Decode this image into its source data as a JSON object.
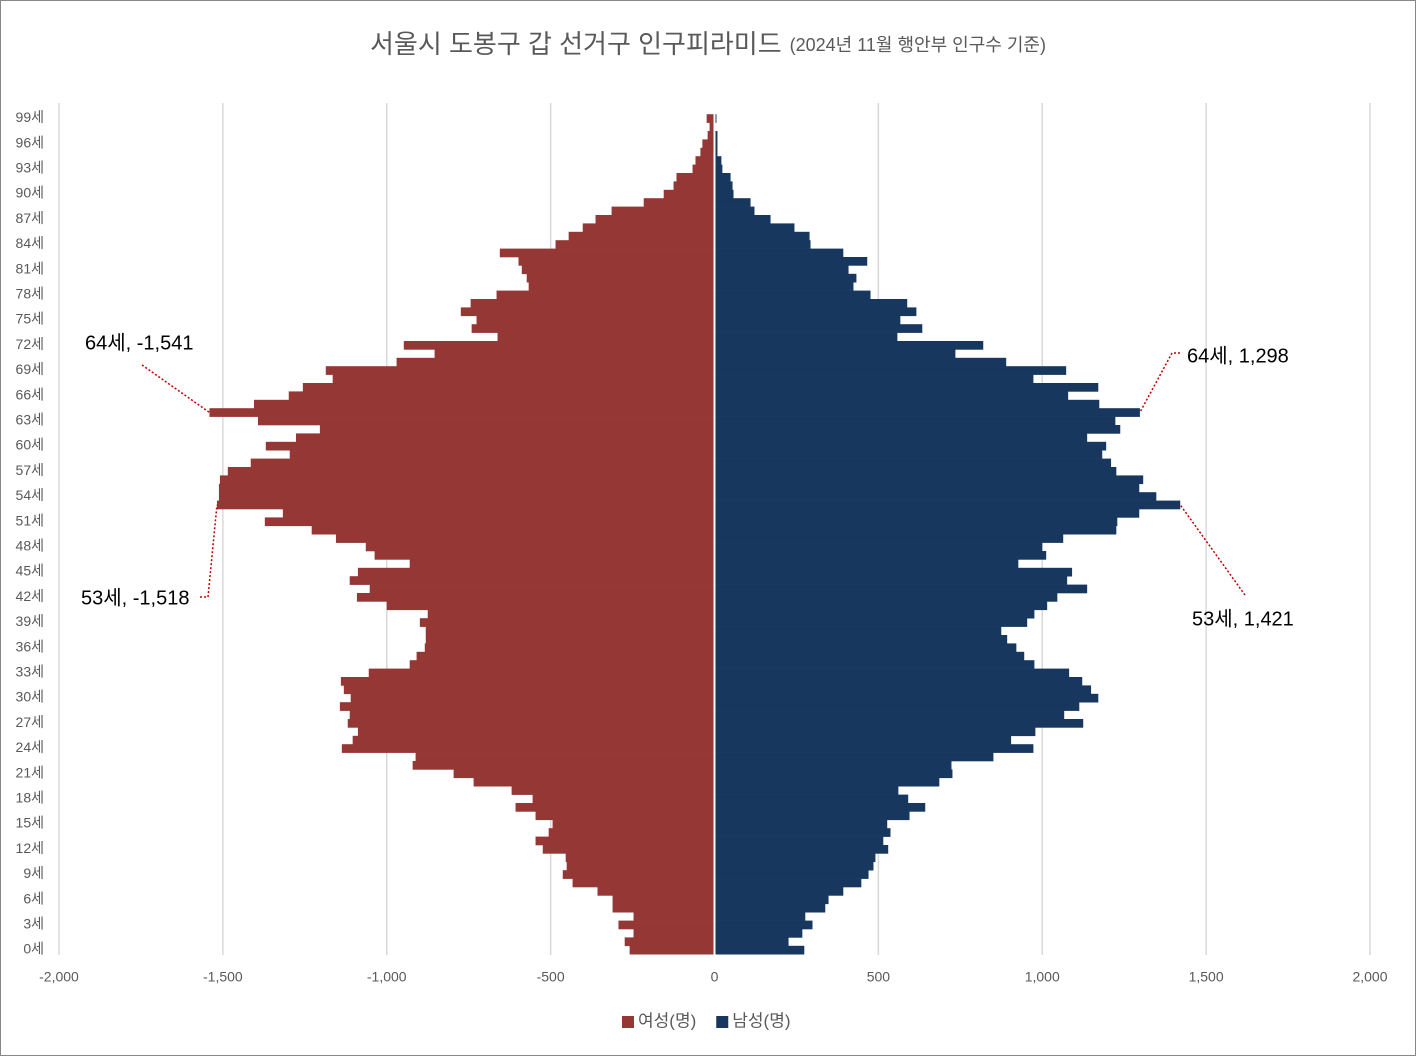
{
  "chart_data": {
    "type": "bar",
    "orientation": "horizontal",
    "title": "서울시 도봉구 갑 선거구 인구피라미드",
    "subtitle": "(2024년 11월 행안부 인구수 기준)",
    "categories": [
      "0세",
      null,
      null,
      "3세",
      null,
      null,
      "6세",
      null,
      null,
      "9세",
      null,
      null,
      "12세",
      null,
      null,
      "15세",
      null,
      null,
      "18세",
      null,
      null,
      "21세",
      null,
      null,
      "24세",
      null,
      null,
      "27세",
      null,
      null,
      "30세",
      null,
      null,
      "33세",
      null,
      null,
      "36세",
      null,
      null,
      "39세",
      null,
      null,
      "42세",
      null,
      null,
      "45세",
      null,
      null,
      "48세",
      null,
      null,
      "51세",
      null,
      null,
      "54세",
      null,
      null,
      "57세",
      null,
      null,
      "60세",
      null,
      null,
      "63세",
      null,
      null,
      "66세",
      null,
      null,
      "69세",
      null,
      null,
      "72세",
      null,
      null,
      "75세",
      null,
      null,
      "78세",
      null,
      null,
      "81세",
      null,
      null,
      "84세",
      null,
      null,
      "87세",
      null,
      null,
      "90세",
      null,
      null,
      "93세",
      null,
      null,
      "96세",
      null,
      null,
      "99세"
    ],
    "series": [
      {
        "name": "여성(명)",
        "color": "#953735",
        "values": [
          -259,
          -274,
          -247,
          -293,
          -247,
          -311,
          -311,
          -357,
          -433,
          -463,
          -451,
          -454,
          -524,
          -546,
          -506,
          -494,
          -546,
          -607,
          -555,
          -619,
          -735,
          -796,
          -921,
          -912,
          -1137,
          -1104,
          -1088,
          -1119,
          -1113,
          -1143,
          -1110,
          -1131,
          -1140,
          -1055,
          -930,
          -909,
          -884,
          -881,
          -881,
          -899,
          -875,
          -1000,
          -1091,
          -1052,
          -1113,
          -1088,
          -930,
          -1037,
          -1064,
          -1155,
          -1229,
          -1372,
          -1317,
          -1518,
          -1512,
          -1512,
          -1509,
          -1485,
          -1415,
          -1296,
          -1369,
          -1277,
          -1204,
          -1393,
          -1541,
          -1405,
          -1299,
          -1256,
          -1165,
          -1186,
          -970,
          -854,
          -948,
          -662,
          -741,
          -726,
          -774,
          -744,
          -665,
          -567,
          -573,
          -588,
          -598,
          -655,
          -485,
          -445,
          -402,
          -363,
          -314,
          -216,
          -155,
          -125,
          -116,
          -67,
          -58,
          -43,
          -37,
          -21,
          -15,
          -24
        ]
      },
      {
        "name": "남성(명)",
        "color": "#17375e",
        "values": [
          274,
          226,
          268,
          299,
          277,
          338,
          348,
          393,
          448,
          470,
          485,
          491,
          530,
          515,
          537,
          527,
          595,
          643,
          591,
          561,
          686,
          726,
          723,
          851,
          973,
          905,
          979,
          1125,
          1067,
          1113,
          1171,
          1149,
          1122,
          1082,
          976,
          945,
          921,
          893,
          875,
          954,
          976,
          1015,
          1046,
          1137,
          1076,
          1091,
          927,
          1012,
          1000,
          1064,
          1226,
          1229,
          1296,
          1421,
          1348,
          1296,
          1308,
          1226,
          1210,
          1183,
          1195,
          1137,
          1238,
          1223,
          1298,
          1174,
          1079,
          1171,
          973,
          1073,
          890,
          735,
          820,
          558,
          634,
          567,
          616,
          588,
          476,
          424,
          433,
          409,
          466,
          393,
          293,
          290,
          244,
          171,
          122,
          110,
          58,
          55,
          49,
          24,
          21,
          9,
          9,
          9,
          3,
          6
        ]
      }
    ],
    "annotations": [
      "64세, -1,541",
      "53세, -1,518",
      "64세, 1,298",
      "53세, 1,421"
    ],
    "xlim": [
      -2000,
      2000
    ],
    "xticks": [
      {
        "value": -2000,
        "label": "-2,000"
      },
      {
        "value": -1500,
        "label": "-1,500"
      },
      {
        "value": -1000,
        "label": "-1,000"
      },
      -500,
      0,
      500,
      {
        "value": 1000,
        "label": "1,000"
      },
      {
        "value": 1500,
        "label": "1,500"
      },
      {
        "value": 2000,
        "label": "2,000"
      }
    ],
    "grid": true,
    "legend": "bottom"
  }
}
